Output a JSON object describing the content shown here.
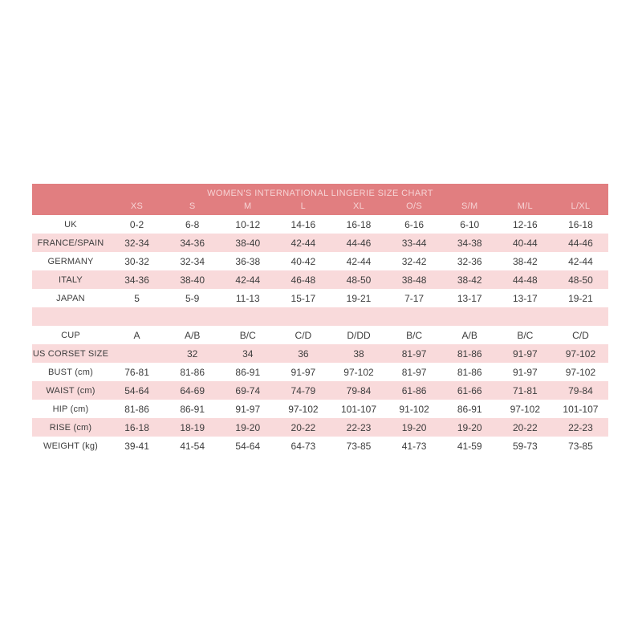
{
  "colors": {
    "header_bg": "#e17e80",
    "header_text": "#f6d3d4",
    "stripe": "#f9dadb",
    "text": "#3d3d3d",
    "page_bg": "#ffffff"
  },
  "chart_data": {
    "type": "table",
    "title": "WOMEN'S INTERNATIONAL LINGERIE SIZE CHART",
    "columns": [
      "XS",
      "S",
      "M",
      "L",
      "XL",
      "O/S",
      "S/M",
      "M/L",
      "L/XL"
    ],
    "rows": [
      {
        "label": "UK",
        "spacer": false,
        "values": [
          "0-2",
          "6-8",
          "10-12",
          "14-16",
          "16-18",
          "6-16",
          "6-10",
          "12-16",
          "16-18"
        ]
      },
      {
        "label": "FRANCE/SPAIN",
        "spacer": false,
        "values": [
          "32-34",
          "34-36",
          "38-40",
          "42-44",
          "44-46",
          "33-44",
          "34-38",
          "40-44",
          "44-46"
        ]
      },
      {
        "label": "GERMANY",
        "spacer": false,
        "values": [
          "30-32",
          "32-34",
          "36-38",
          "40-42",
          "42-44",
          "32-42",
          "32-36",
          "38-42",
          "42-44"
        ]
      },
      {
        "label": "ITALY",
        "spacer": false,
        "values": [
          "34-36",
          "38-40",
          "42-44",
          "46-48",
          "48-50",
          "38-48",
          "38-42",
          "44-48",
          "48-50"
        ]
      },
      {
        "label": "JAPAN",
        "spacer": false,
        "values": [
          "5",
          "5-9",
          "11-13",
          "15-17",
          "19-21",
          "7-17",
          "13-17",
          "13-17",
          "19-21"
        ]
      },
      {
        "label": "",
        "spacer": true,
        "values": [
          "",
          "",
          "",
          "",
          "",
          "",
          "",
          "",
          ""
        ]
      },
      {
        "label": "CUP",
        "spacer": false,
        "values": [
          "A",
          "A/B",
          "B/C",
          "C/D",
          "D/DD",
          "B/C",
          "A/B",
          "B/C",
          "C/D"
        ]
      },
      {
        "label": "US CORSET SIZE",
        "spacer": false,
        "values": [
          "",
          "32",
          "34",
          "36",
          "38",
          "81-97",
          "81-86",
          "91-97",
          "97-102"
        ]
      },
      {
        "label": "BUST (cm)",
        "spacer": false,
        "values": [
          "76-81",
          "81-86",
          "86-91",
          "91-97",
          "97-102",
          "81-97",
          "81-86",
          "91-97",
          "97-102"
        ]
      },
      {
        "label": "WAIST (cm)",
        "spacer": false,
        "values": [
          "54-64",
          "64-69",
          "69-74",
          "74-79",
          "79-84",
          "61-86",
          "61-66",
          "71-81",
          "79-84"
        ]
      },
      {
        "label": "HIP (cm)",
        "spacer": false,
        "values": [
          "81-86",
          "86-91",
          "91-97",
          "97-102",
          "101-107",
          "91-102",
          "86-91",
          "97-102",
          "101-107"
        ]
      },
      {
        "label": "RISE (cm)",
        "spacer": false,
        "values": [
          "16-18",
          "18-19",
          "19-20",
          "20-22",
          "22-23",
          "19-20",
          "19-20",
          "20-22",
          "22-23"
        ]
      },
      {
        "label": "WEIGHT (kg)",
        "spacer": false,
        "values": [
          "39-41",
          "41-54",
          "54-64",
          "64-73",
          "73-85",
          "41-73",
          "41-59",
          "59-73",
          "73-85"
        ]
      }
    ]
  }
}
